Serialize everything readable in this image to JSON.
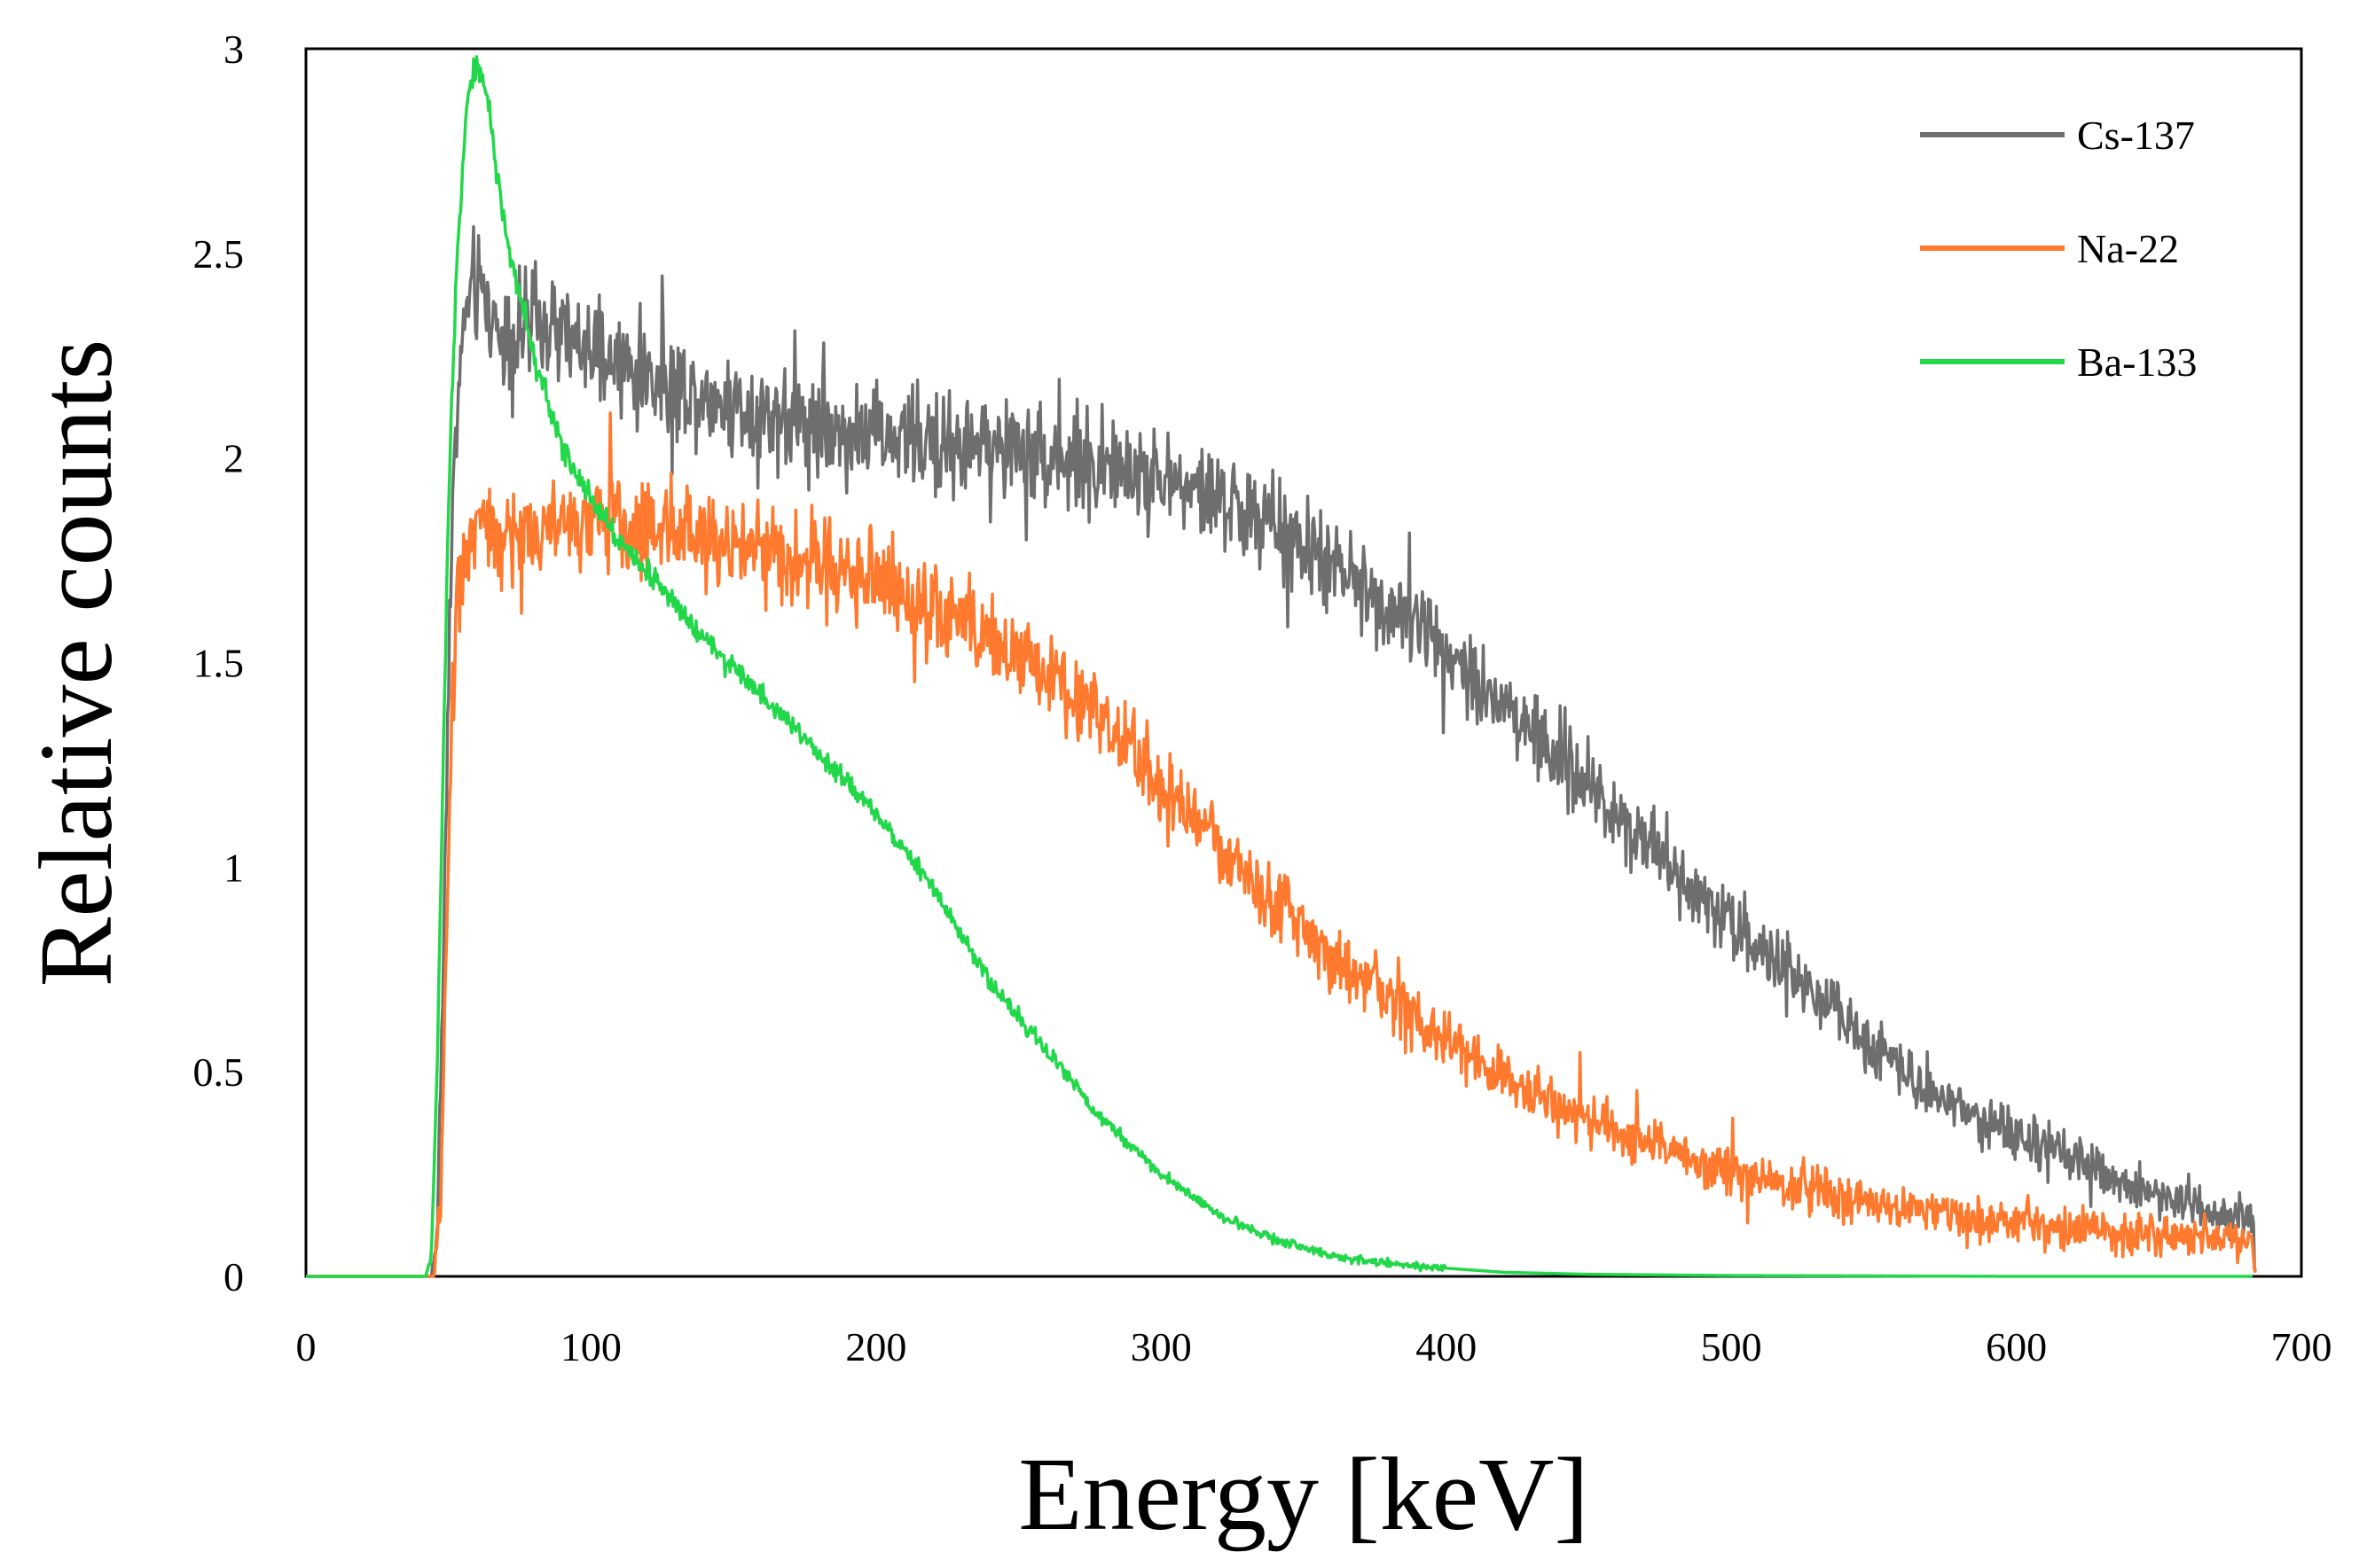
{
  "chart_data": {
    "type": "line",
    "title": "",
    "xlabel": "Energy [keV]",
    "ylabel": "Relative counts",
    "xlim": [
      0,
      700
    ],
    "ylim": [
      0,
      3
    ],
    "x_ticks": [
      0,
      100,
      200,
      300,
      400,
      500,
      600,
      700
    ],
    "x_tick_labels": [
      "0",
      "100",
      "200",
      "300",
      "400",
      "500",
      "600",
      "700"
    ],
    "y_ticks": [
      0,
      0.5,
      1,
      1.5,
      2,
      2.5,
      3
    ],
    "y_tick_labels": [
      "0",
      "0.5",
      "1",
      "1.5",
      "2",
      "2.5",
      "3"
    ],
    "grid": false,
    "legend_position": "top-right",
    "series": [
      {
        "name": "Cs-137",
        "color": "#6e6e6e",
        "noise": 0.05,
        "x": [
          0,
          44,
          46,
          48,
          50,
          52,
          55,
          58,
          62,
          66,
          70,
          80,
          90,
          100,
          120,
          150,
          200,
          250,
          300,
          330,
          360,
          390,
          420,
          450,
          480,
          510,
          540,
          570,
          600,
          630,
          660,
          683,
          684
        ],
        "y": [
          0,
          0,
          0.1,
          0.7,
          1.5,
          2.0,
          2.3,
          2.42,
          2.4,
          2.33,
          2.3,
          2.32,
          2.3,
          2.25,
          2.2,
          2.13,
          2.05,
          2.02,
          1.95,
          1.87,
          1.73,
          1.6,
          1.4,
          1.2,
          1.0,
          0.8,
          0.62,
          0.46,
          0.34,
          0.25,
          0.18,
          0.14,
          0
        ]
      },
      {
        "name": "Na-22",
        "color": "#ff7a2e",
        "noise": 0.05,
        "x": [
          0,
          45,
          47,
          49,
          51,
          53,
          56,
          60,
          70,
          80,
          100,
          120,
          150,
          180,
          200,
          230,
          260,
          280,
          300,
          330,
          360,
          390,
          420,
          450,
          480,
          510,
          540,
          570,
          600,
          630,
          660,
          683,
          684
        ],
        "y": [
          0,
          0,
          0.15,
          0.7,
          1.35,
          1.65,
          1.78,
          1.82,
          1.8,
          1.82,
          1.85,
          1.83,
          1.8,
          1.75,
          1.7,
          1.6,
          1.48,
          1.35,
          1.2,
          0.98,
          0.78,
          0.62,
          0.48,
          0.38,
          0.3,
          0.24,
          0.19,
          0.16,
          0.13,
          0.11,
          0.1,
          0.09,
          0
        ]
      },
      {
        "name": "Ba-133",
        "color": "#22d84a",
        "noise": 0.012,
        "x": [
          0,
          42,
          44,
          46,
          48,
          50,
          53,
          56,
          58,
          60,
          62,
          64,
          67,
          70,
          75,
          80,
          90,
          100,
          110,
          120,
          140,
          160,
          180,
          200,
          220,
          240,
          260,
          280,
          300,
          320,
          340,
          360,
          380,
          400,
          420,
          450,
          500,
          550,
          600,
          683
        ],
        "y": [
          0,
          0,
          0.05,
          0.5,
          1.2,
          1.9,
          2.5,
          2.82,
          2.93,
          2.97,
          2.92,
          2.85,
          2.7,
          2.55,
          2.4,
          2.25,
          2.02,
          1.9,
          1.8,
          1.72,
          1.56,
          1.42,
          1.28,
          1.13,
          0.95,
          0.72,
          0.55,
          0.38,
          0.25,
          0.15,
          0.09,
          0.05,
          0.03,
          0.02,
          0.01,
          0.005,
          0.002,
          0.001,
          0,
          0
        ]
      }
    ]
  }
}
